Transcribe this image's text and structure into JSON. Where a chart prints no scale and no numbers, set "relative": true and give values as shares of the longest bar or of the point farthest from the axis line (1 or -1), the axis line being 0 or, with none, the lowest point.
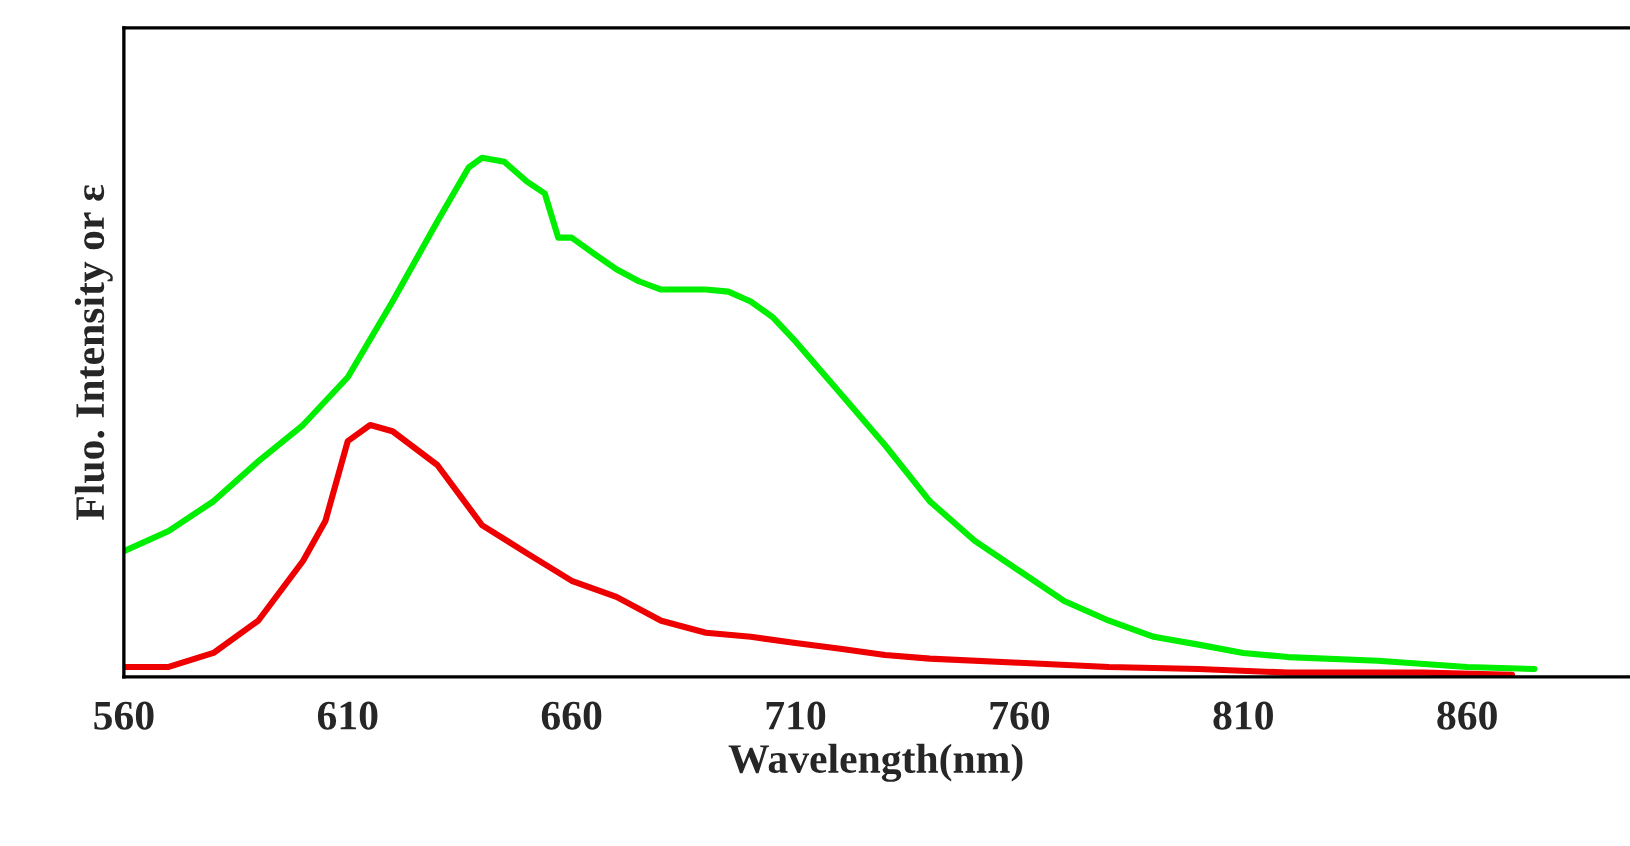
{
  "chart_data": {
    "type": "line",
    "relative": true,
    "xlabel": "Wavelength(nm)",
    "ylabel": "Fluo. Intensity or ε",
    "xlim": [
      560,
      896
    ],
    "xticks": [
      560,
      610,
      660,
      710,
      760,
      810,
      860
    ],
    "grid": false,
    "marker": "none",
    "line_style": "solid",
    "series": [
      {
        "color": "#00ee00",
        "x": [
          560,
          570,
          580,
          590,
          600,
          610,
          620,
          630,
          637,
          640,
          645,
          650,
          654,
          657,
          660,
          665,
          670,
          675,
          680,
          690,
          695,
          700,
          705,
          710,
          720,
          730,
          740,
          750,
          760,
          770,
          780,
          790,
          800,
          810,
          820,
          840,
          860,
          875
        ],
        "values": [
          0.242,
          0.281,
          0.338,
          0.415,
          0.485,
          0.577,
          0.723,
          0.877,
          0.981,
          1.0,
          0.992,
          0.954,
          0.931,
          0.846,
          0.846,
          0.815,
          0.785,
          0.762,
          0.746,
          0.746,
          0.742,
          0.723,
          0.692,
          0.646,
          0.546,
          0.446,
          0.338,
          0.262,
          0.204,
          0.146,
          0.108,
          0.077,
          0.062,
          0.046,
          0.038,
          0.031,
          0.019,
          0.015
        ]
      },
      {
        "color": "#ee0000",
        "x": [
          560,
          570,
          580,
          590,
          600,
          605,
          610,
          615,
          620,
          630,
          640,
          650,
          660,
          670,
          680,
          690,
          700,
          710,
          720,
          730,
          740,
          760,
          780,
          800,
          820,
          850,
          870
        ],
        "values": [
          0.019,
          0.019,
          0.046,
          0.108,
          0.223,
          0.3,
          0.454,
          0.485,
          0.473,
          0.408,
          0.292,
          0.238,
          0.185,
          0.154,
          0.108,
          0.085,
          0.077,
          0.065,
          0.054,
          0.042,
          0.035,
          0.027,
          0.019,
          0.015,
          0.008,
          0.008,
          0.004
        ]
      }
    ]
  }
}
